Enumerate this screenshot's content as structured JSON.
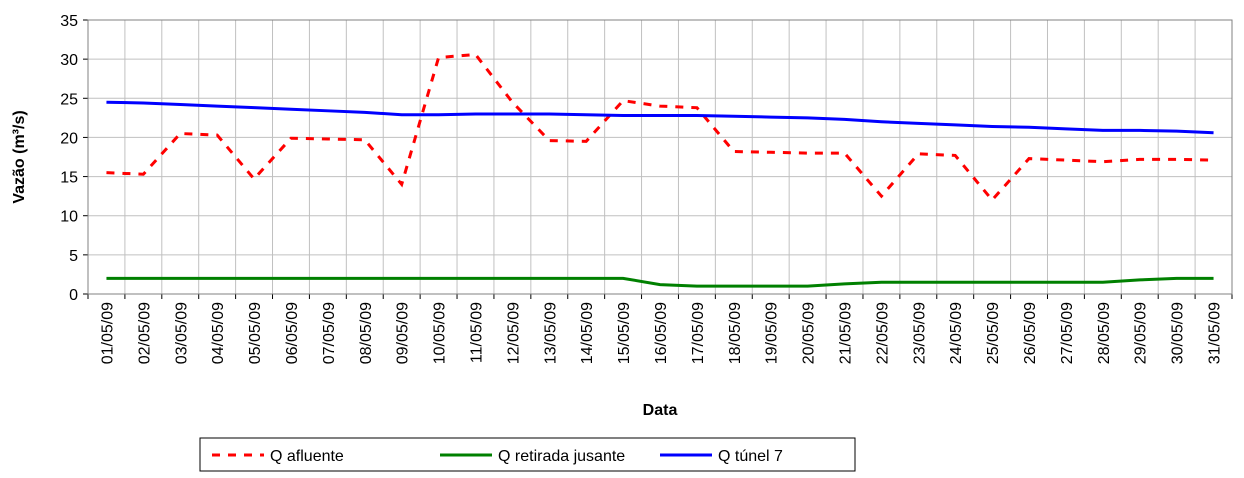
{
  "chart_data": {
    "type": "line",
    "x_label": "Data",
    "y_label": "Vazão (m³/s)",
    "categories": [
      "01/05/09",
      "02/05/09",
      "03/05/09",
      "04/05/09",
      "05/05/09",
      "06/05/09",
      "07/05/09",
      "08/05/09",
      "09/05/09",
      "10/05/09",
      "11/05/09",
      "12/05/09",
      "13/05/09",
      "14/05/09",
      "15/05/09",
      "16/05/09",
      "17/05/09",
      "18/05/09",
      "19/05/09",
      "20/05/09",
      "21/05/09",
      "22/05/09",
      "23/05/09",
      "24/05/09",
      "25/05/09",
      "26/05/09",
      "27/05/09",
      "28/05/09",
      "29/05/09",
      "30/05/09",
      "31/05/09"
    ],
    "series": [
      {
        "name": "Q afluente",
        "color": "#ff0000",
        "dashed": true,
        "values": [
          15.5,
          15.3,
          20.5,
          20.3,
          14.7,
          19.9,
          19.8,
          19.7,
          14,
          30.2,
          30.6,
          24.5,
          19.6,
          19.5,
          24.7,
          24,
          23.8,
          18.2,
          18.1,
          18,
          18,
          12.5,
          17.9,
          17.7,
          12,
          17.3,
          17.1,
          16.9,
          17.2,
          17.2,
          17.1
        ]
      },
      {
        "name": "Q retirada jusante",
        "color": "#008000",
        "values": [
          2,
          2,
          2,
          2,
          2,
          2,
          2,
          2,
          2,
          2,
          2,
          2,
          2,
          2,
          2,
          1.2,
          1,
          1,
          1,
          1,
          1.3,
          1.5,
          1.5,
          1.5,
          1.5,
          1.5,
          1.5,
          1.5,
          1.8,
          2,
          2
        ]
      },
      {
        "name": "Q túnel 7",
        "color": "#0000ff",
        "values": [
          24.5,
          24.4,
          24.2,
          24,
          23.8,
          23.6,
          23.4,
          23.2,
          22.9,
          22.9,
          23,
          23,
          23,
          22.9,
          22.8,
          22.8,
          22.8,
          22.7,
          22.6,
          22.5,
          22.3,
          22,
          21.8,
          21.6,
          21.4,
          21.3,
          21.1,
          20.9,
          20.9,
          20.8,
          20.6
        ]
      }
    ],
    "ylim": [
      0,
      35
    ],
    "yticks": [
      0,
      5,
      10,
      15,
      20,
      25,
      30,
      35
    ],
    "grid": true,
    "legend": "bottom"
  }
}
